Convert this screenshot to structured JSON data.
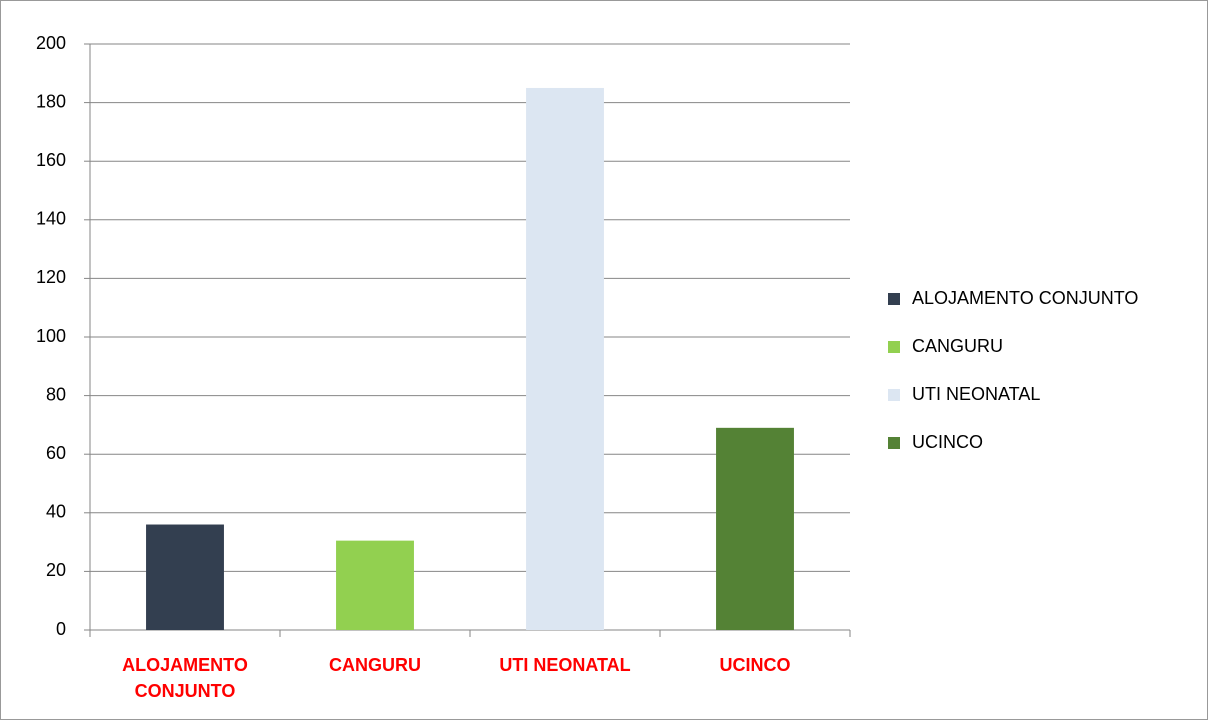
{
  "chart_data": {
    "type": "bar",
    "categories": [
      "ALOJAMENTO CONJUNTO",
      "CANGURU",
      "UTI NEONATAL",
      "UCINCO"
    ],
    "values": [
      36,
      30.5,
      185,
      69
    ],
    "colors": [
      "#333f50",
      "#92d050",
      "#dce6f2",
      "#548235"
    ],
    "ylim": [
      0,
      200
    ],
    "yticks": [
      0,
      20,
      40,
      60,
      80,
      100,
      120,
      140,
      160,
      180,
      200
    ],
    "grid": true,
    "legend": "right"
  }
}
